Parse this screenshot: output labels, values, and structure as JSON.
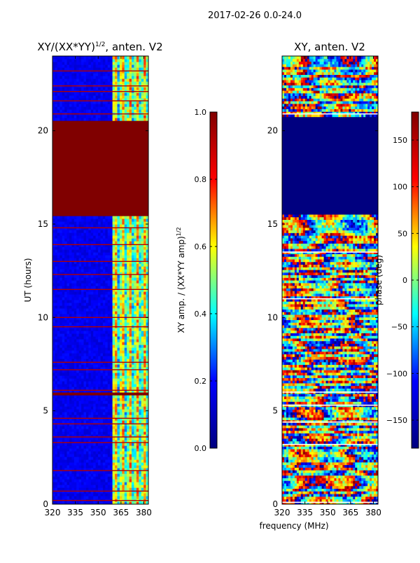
{
  "figure": {
    "suptitle": "2017-02-26 0.0-24.0",
    "shared_xlabel": "frequency (MHz)"
  },
  "colormap": {
    "name": "jet",
    "stops": [
      "#000080",
      "#0000ff",
      "#00ffff",
      "#ffff00",
      "#ff0000",
      "#800000"
    ]
  },
  "chart_data": [
    {
      "type": "heatmap",
      "title": "XY/(XX*YY)",
      "title_exponent": "1/2",
      "title_suffix": ", anten. V2",
      "xlabel": "",
      "ylabel": "UT (hours)",
      "xlim": [
        320,
        383
      ],
      "ylim": [
        0,
        24
      ],
      "xticks": [
        320,
        335,
        350,
        365,
        380
      ],
      "yticks": [
        0,
        5,
        10,
        15,
        20
      ],
      "colorbar": {
        "label": "XY amp. / (XX*YY amp)",
        "label_exponent": "1/2",
        "range": [
          0.0,
          1.0
        ],
        "ticks": [
          "0.0",
          "0.2",
          "0.4",
          "0.6",
          "0.8",
          "1.0"
        ],
        "tick_values": [
          0.0,
          0.2,
          0.4,
          0.6,
          0.8,
          1.0
        ]
      },
      "background_value": 0.08,
      "bright_band_mhz": [
        360,
        383
      ],
      "saturated_blocks_hours": [
        [
          15.5,
          20.6
        ],
        [
          5.8,
          6.0
        ]
      ],
      "saturated_lines_hours": [
        0.2,
        0.7,
        1.8,
        3.3,
        3.6,
        4.3,
        4.6,
        6.1,
        7.2,
        7.6,
        9.5,
        10.0,
        11.5,
        12.3,
        13.0,
        13.9,
        14.8,
        20.9,
        21.6,
        22.1,
        22.4,
        23.2
      ]
    },
    {
      "type": "heatmap",
      "title": "XY, anten. V2",
      "xlabel": "frequency (MHz)",
      "ylabel": "",
      "xlim": [
        320,
        383
      ],
      "ylim": [
        0,
        24
      ],
      "xticks": [
        320,
        335,
        350,
        365,
        380
      ],
      "yticks": [
        0,
        5,
        10,
        15,
        20
      ],
      "colorbar": {
        "label": "phase (deg)",
        "range": [
          -180,
          180
        ],
        "ticks": [
          "−150",
          "−100",
          "−50",
          "0",
          "50",
          "100",
          "150"
        ],
        "tick_values": [
          -150,
          -100,
          -50,
          0,
          50,
          100,
          150
        ]
      },
      "uniform_block_hours": [
        15.5,
        20.8
      ],
      "uniform_block_value": -180,
      "white_gap_lines_hours": [
        0.1,
        3.2,
        4.4,
        5.3,
        6.0,
        11.0,
        13.5,
        20.9
      ]
    }
  ]
}
